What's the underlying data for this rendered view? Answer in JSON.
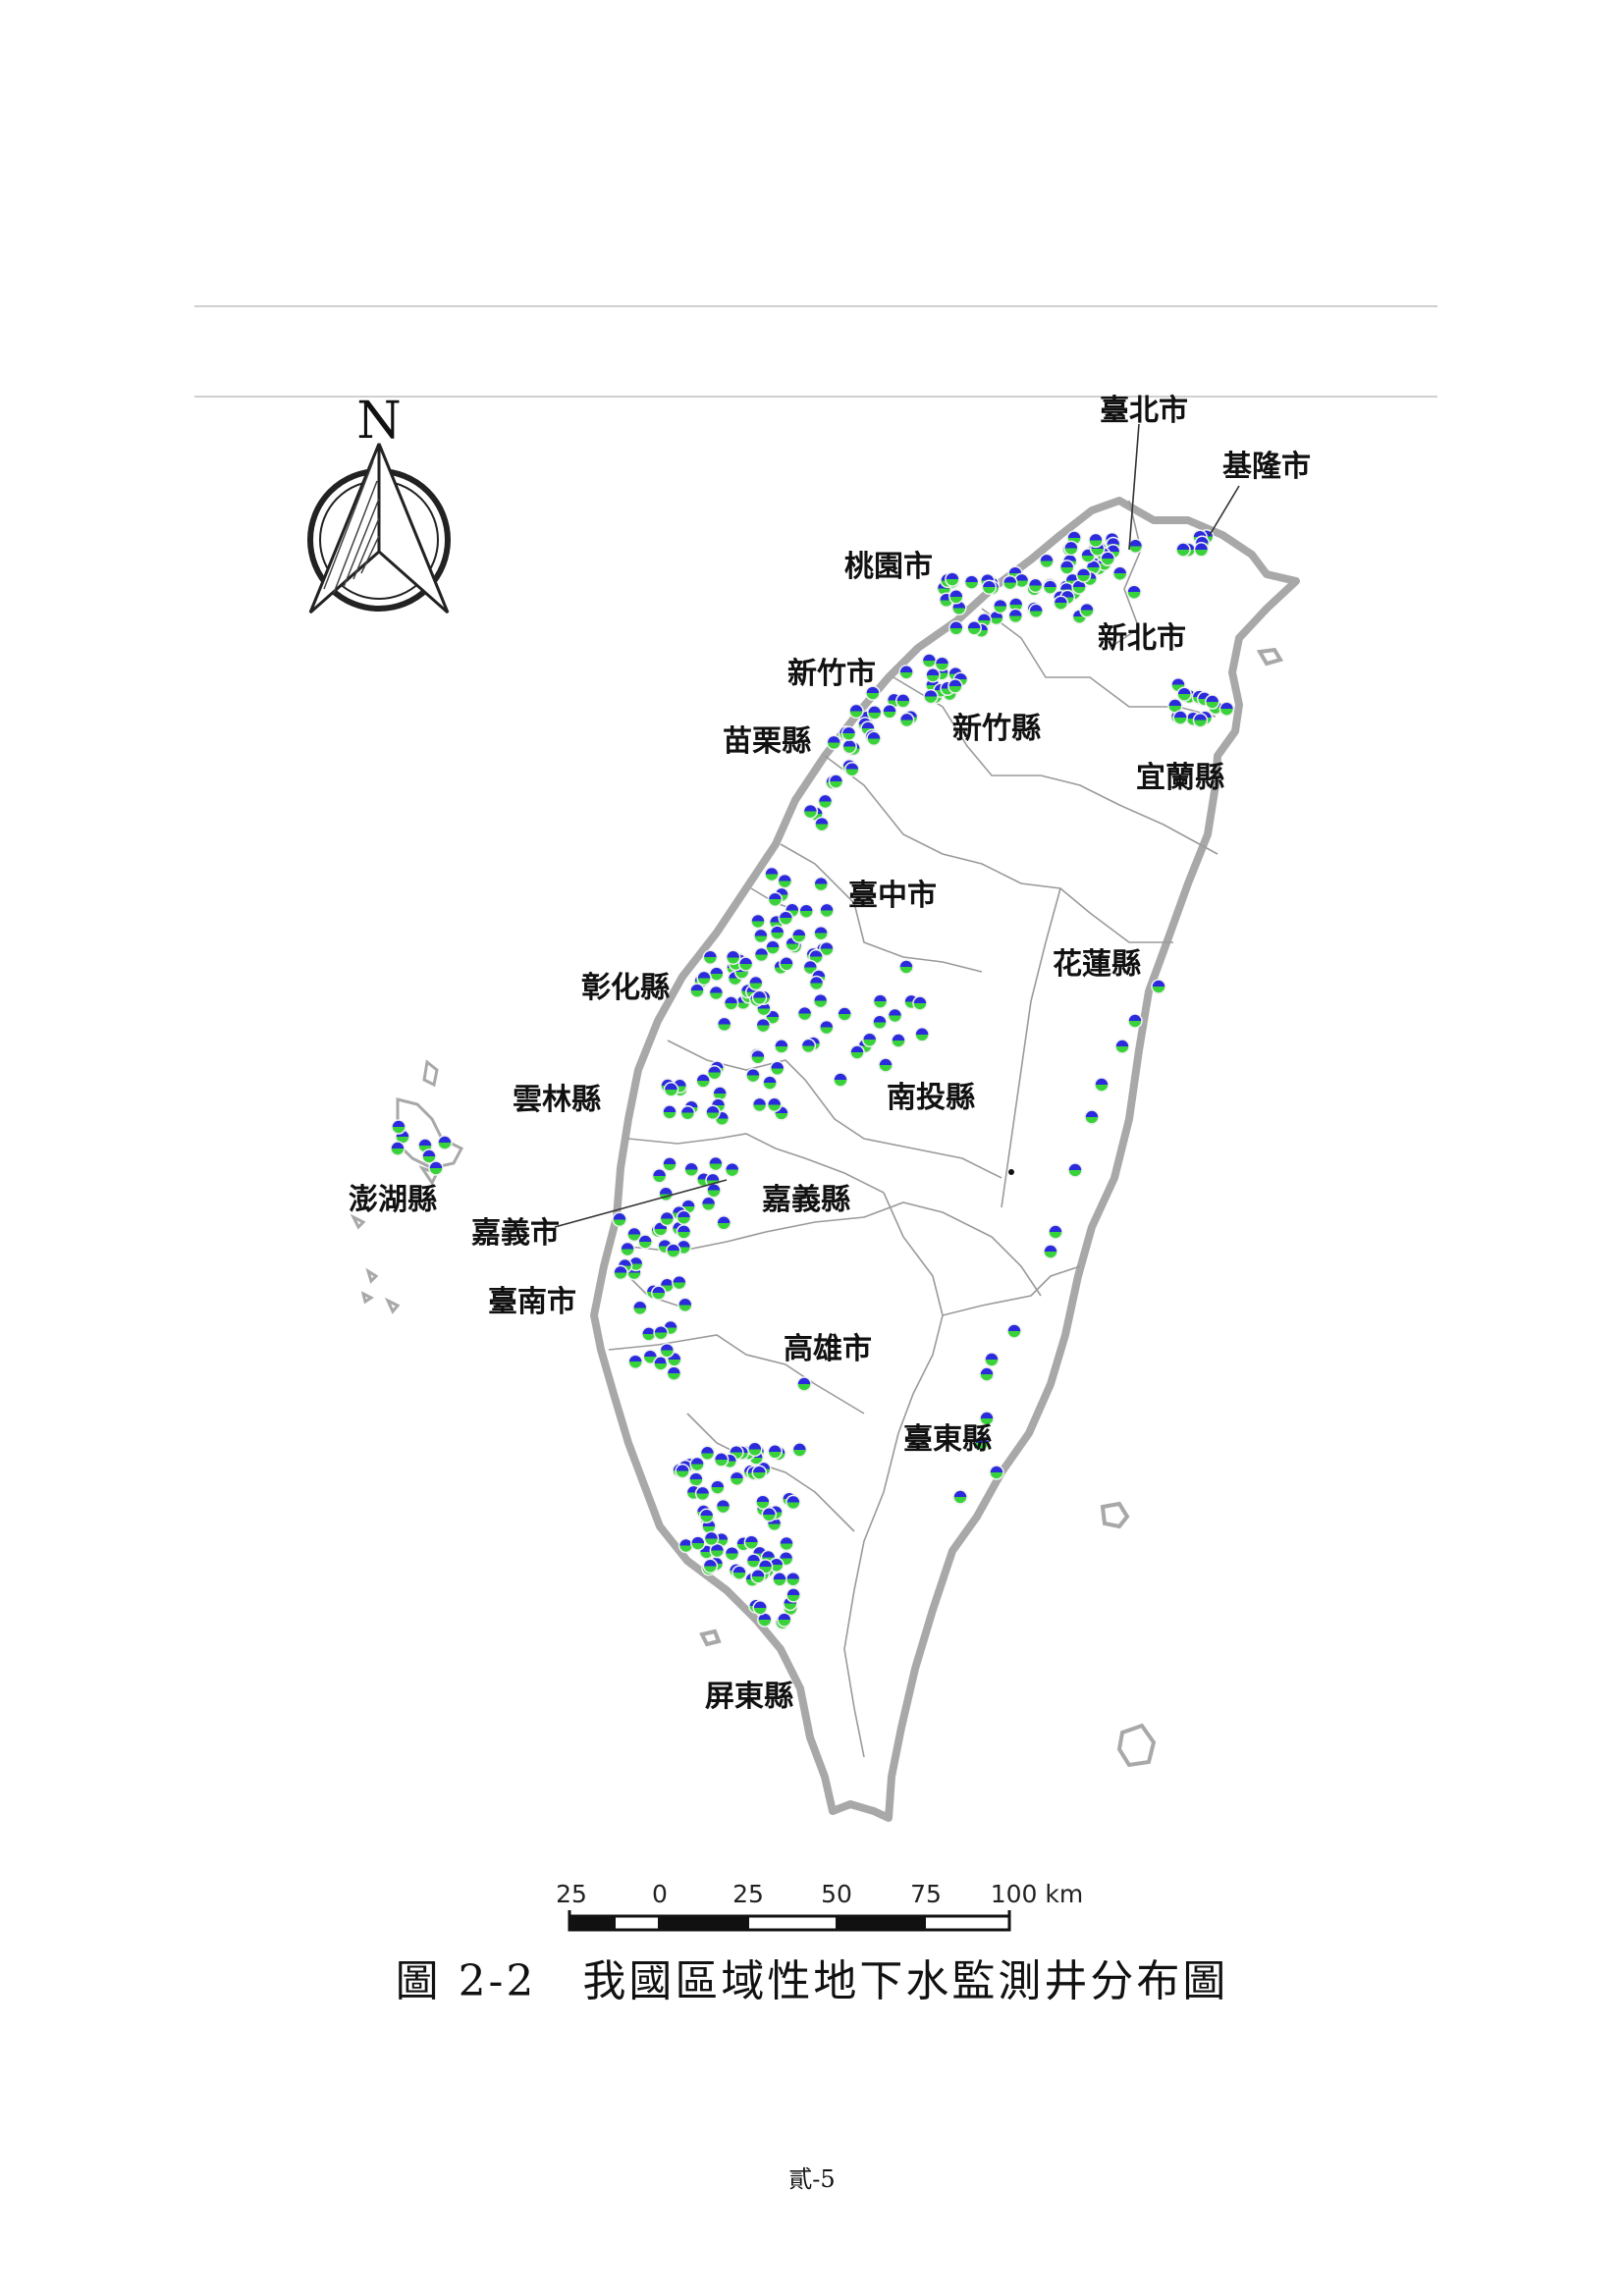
{
  "map": {
    "north_label": "N",
    "regions": [
      {
        "id": "taipei-city",
        "label": "臺北市"
      },
      {
        "id": "keelung-city",
        "label": "基隆市"
      },
      {
        "id": "taoyuan-city",
        "label": "桃園市"
      },
      {
        "id": "new-taipei-city",
        "label": "新北市"
      },
      {
        "id": "hsinchu-city",
        "label": "新竹市"
      },
      {
        "id": "hsinchu-county",
        "label": "新竹縣"
      },
      {
        "id": "miaoli-county",
        "label": "苗栗縣"
      },
      {
        "id": "yilan-county",
        "label": "宜蘭縣"
      },
      {
        "id": "taichung-city",
        "label": "臺中市"
      },
      {
        "id": "changhua-county",
        "label": "彰化縣"
      },
      {
        "id": "hualien-county",
        "label": "花蓮縣"
      },
      {
        "id": "yunlin-county",
        "label": "雲林縣"
      },
      {
        "id": "nantou-county",
        "label": "南投縣"
      },
      {
        "id": "penghu-county",
        "label": "澎湖縣"
      },
      {
        "id": "chiayi-county",
        "label": "嘉義縣"
      },
      {
        "id": "chiayi-city",
        "label": "嘉義市"
      },
      {
        "id": "tainan-city",
        "label": "臺南市"
      },
      {
        "id": "kaohsiung-city",
        "label": "高雄市"
      },
      {
        "id": "taitung-county",
        "label": "臺東縣"
      },
      {
        "id": "pingtung-county",
        "label": "屏東縣"
      }
    ],
    "colors": {
      "well_top": "#2b2bdd",
      "well_bottom": "#3ad23a",
      "outline": "#a8a8a8",
      "boundary": "#9a9a9a"
    },
    "scale_bar": {
      "ticks": [
        "25",
        "0",
        "25",
        "50",
        "75",
        "100 km"
      ]
    }
  },
  "caption": "圖 2-2　我國區域性地下水監測井分布圖",
  "page_number": "貳-5"
}
